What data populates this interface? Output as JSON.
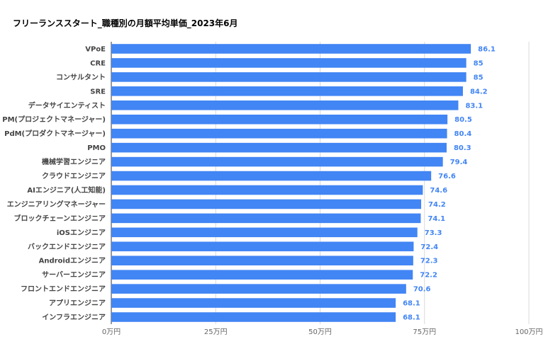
{
  "chart_data": {
    "type": "bar",
    "orientation": "horizontal",
    "title": "フリーランススタート_職種別の月額平均単価_2023年6月",
    "categories": [
      "VPoE",
      "CRE",
      "コンサルタント",
      "SRE",
      "データサイエンティスト",
      "PM(プロジェクトマネージャー)",
      "PdM(プロダクトマネージャー)",
      "PMO",
      "機械学習エンジニア",
      "クラウドエンジニア",
      "AIエンジニア(人工知能)",
      "エンジニアリングマネージャー",
      "ブロックチェーンエンジニア",
      "iOSエンジニア",
      "バックエンドエンジニア",
      "Androidエンジニア",
      "サーバーエンジニア",
      "フロントエンドエンジニア",
      "アプリエンジニア",
      "インフラエンジニア"
    ],
    "values": [
      86.1,
      85,
      85,
      84.2,
      83.1,
      80.5,
      80.4,
      80.3,
      79.4,
      76.6,
      74.6,
      74.2,
      74.1,
      73.3,
      72.4,
      72.3,
      72.2,
      70.6,
      68.1,
      68.1
    ],
    "value_labels": [
      "86.1",
      "85",
      "85",
      "84.2",
      "83.1",
      "80.5",
      "80.4",
      "80.3",
      "79.4",
      "76.6",
      "74.6",
      "74.2",
      "74.1",
      "73.3",
      "72.4",
      "72.3",
      "72.2",
      "70.6",
      "68.1",
      "68.1"
    ],
    "xlim": [
      0,
      100
    ],
    "xticks": [
      0,
      25,
      50,
      75,
      100
    ],
    "xtick_labels": [
      "0万円",
      "25万円",
      "50万円",
      "75万円",
      "100万円"
    ],
    "xlabel": "",
    "ylabel": "",
    "grid": true,
    "legend": "none",
    "bar_color": "#4285f4",
    "label_color": "#4285f4"
  }
}
